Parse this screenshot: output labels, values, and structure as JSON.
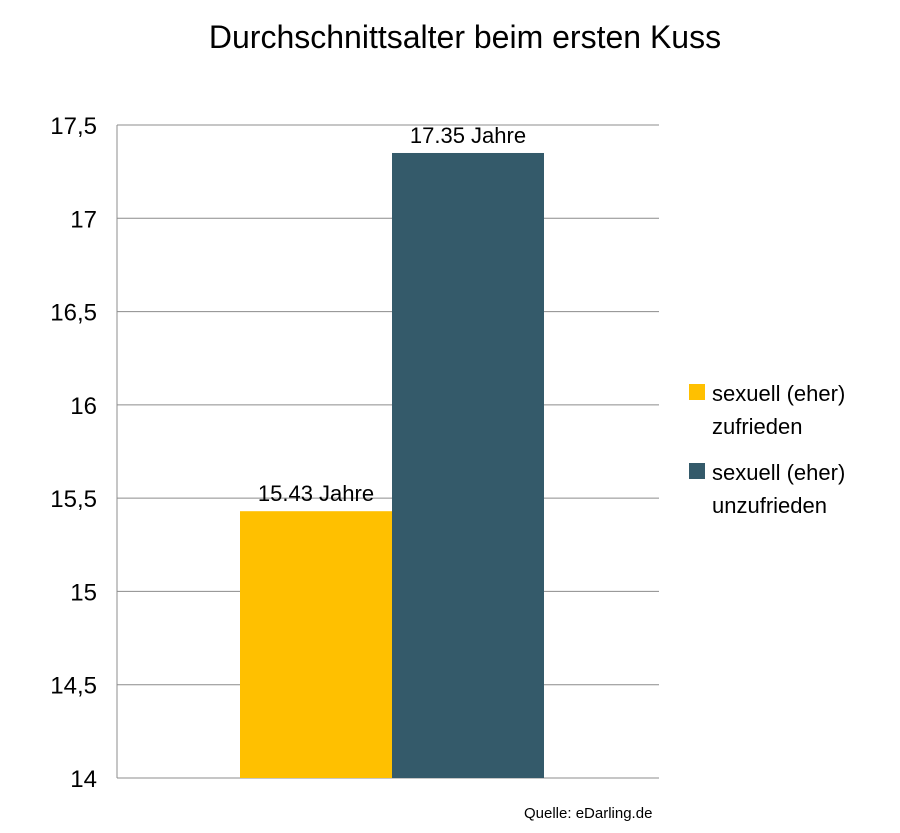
{
  "chart_data": {
    "type": "bar",
    "title": "Durchschnittsalter beim ersten Kuss",
    "categories": [
      ""
    ],
    "series": [
      {
        "name": "sexuell (eher) zufrieden",
        "legend_lines": [
          "sexuell (eher)",
          "zufrieden"
        ],
        "values": [
          15.43
        ],
        "data_label": "15.43 Jahre",
        "color": "#FFC000"
      },
      {
        "name": "sexuell (eher) unzufrieden",
        "legend_lines": [
          "sexuell (eher)",
          "unzufrieden"
        ],
        "values": [
          17.35
        ],
        "data_label": "17.35 Jahre",
        "color": "#345A6A"
      }
    ],
    "ylim": [
      14,
      17.5
    ],
    "yticks": [
      14,
      14.5,
      15,
      15.5,
      16,
      16.5,
      17,
      17.5
    ],
    "ytick_labels": [
      "14",
      "14,5",
      "15",
      "15,5",
      "16",
      "16,5",
      "17",
      "17,5"
    ],
    "xlabel": "",
    "ylabel": "",
    "grid": true,
    "legend_position": "right",
    "source": "Quelle: eDarling.de"
  },
  "colors": {
    "gridline": "#8C8C8C",
    "text": "#000000"
  }
}
